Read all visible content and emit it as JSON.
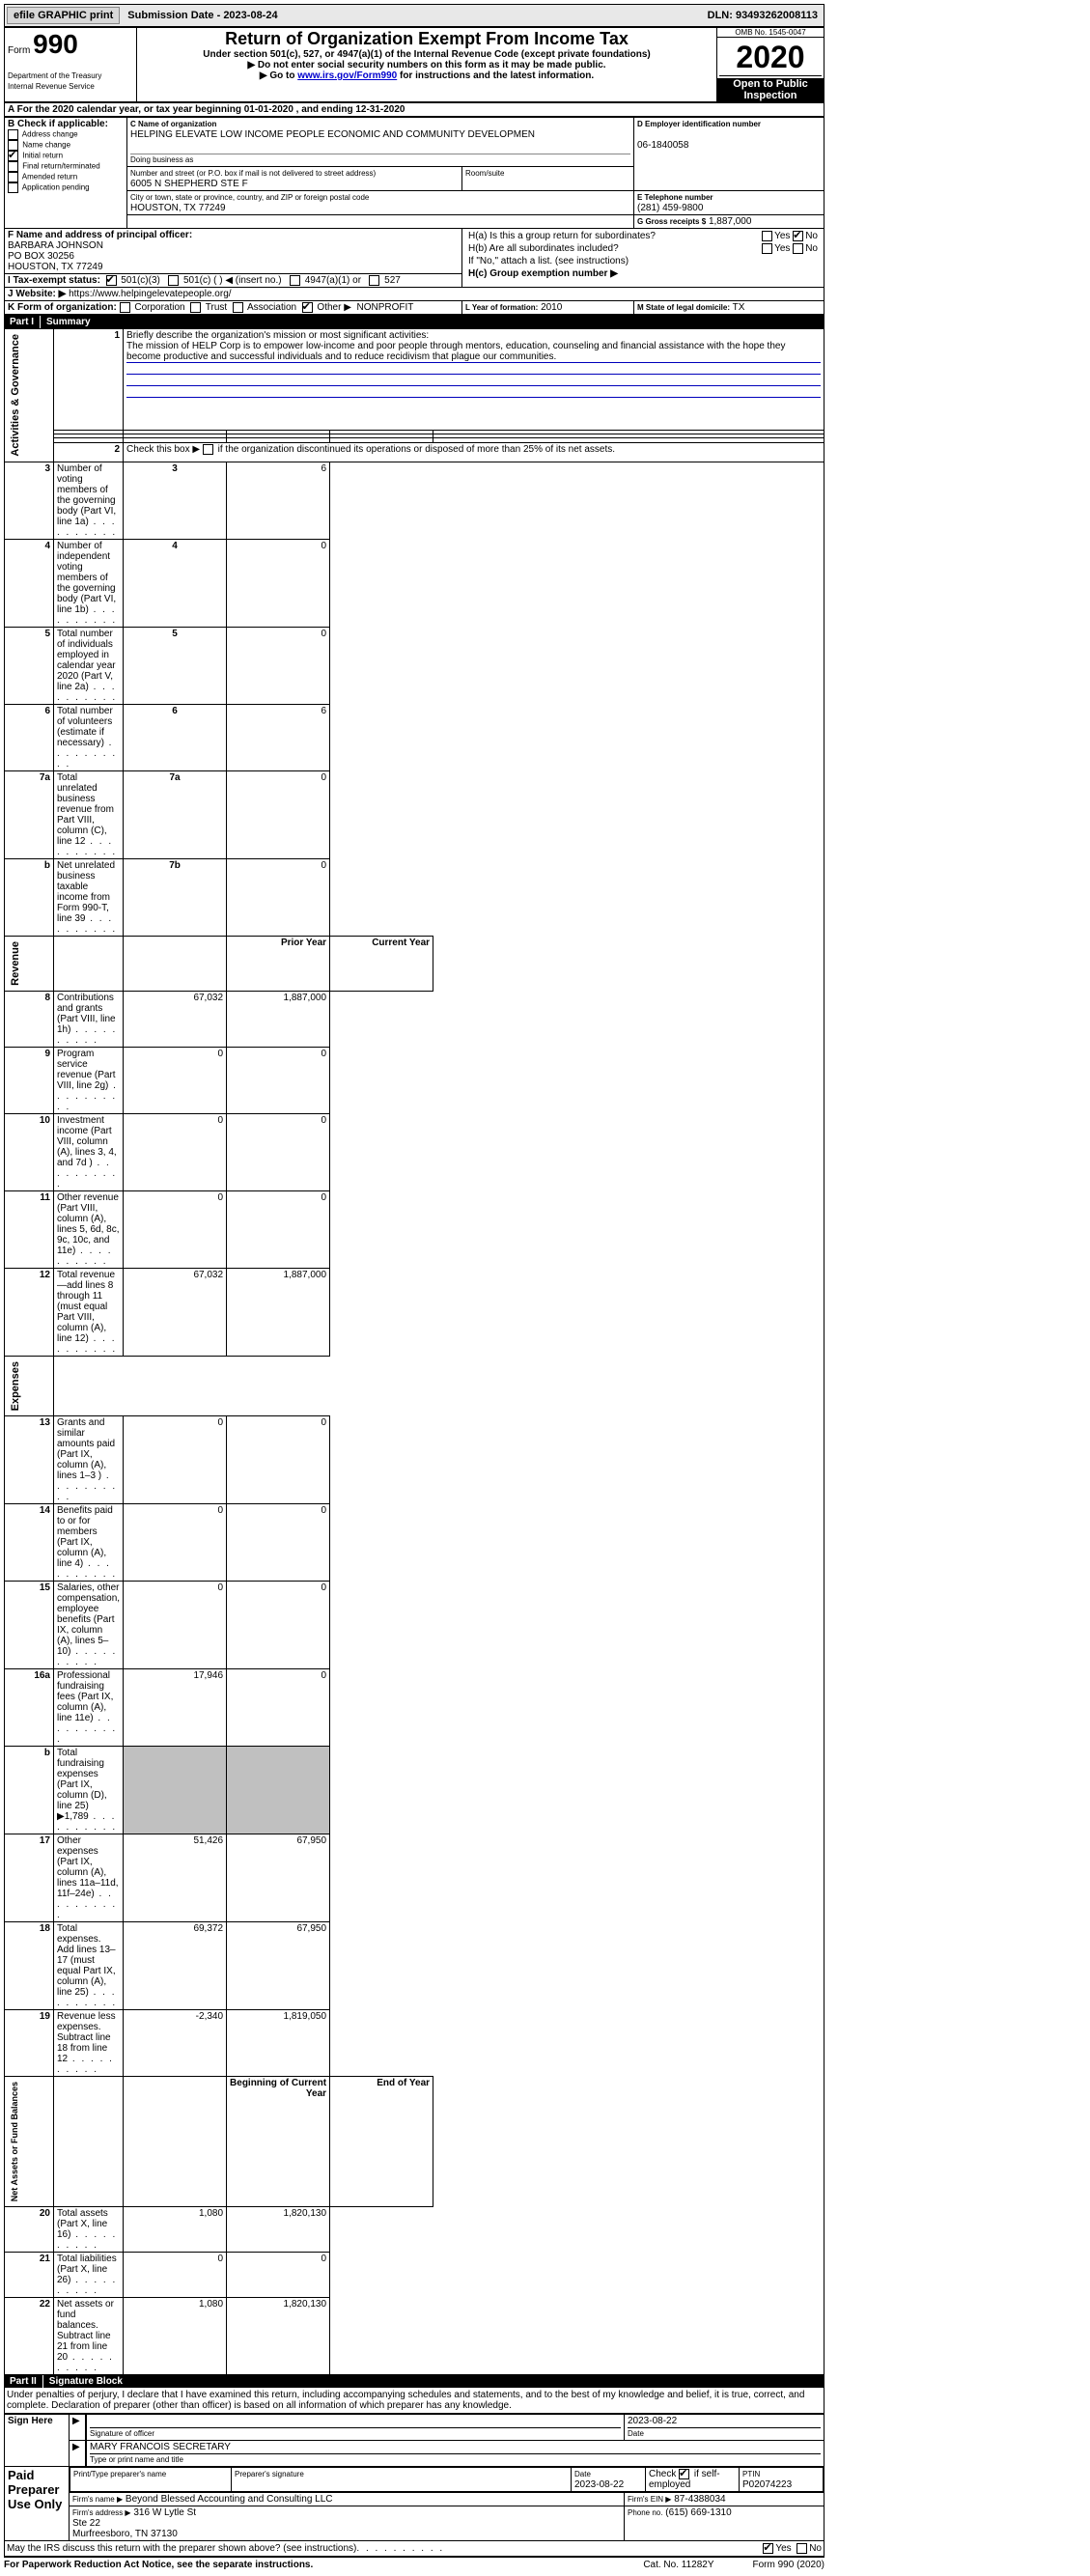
{
  "topbar": {
    "efile_label": "efile GRAPHIC print",
    "submission_label": "Submission Date - 2023-08-24",
    "dln": "DLN: 93493262008113"
  },
  "header": {
    "form_label": "Form",
    "form_number": "990",
    "dept": "Department of the Treasury\nInternal Revenue Service",
    "title": "Return of Organization Exempt From Income Tax",
    "subtitle": "Under section 501(c), 527, or 4947(a)(1) of the Internal Revenue Code (except private foundations)",
    "note1": "▶ Do not enter social security numbers on this form as it may be made public.",
    "note2_pre": "▶ Go to ",
    "note2_link": "www.irs.gov/Form990",
    "note2_post": " for instructions and the latest information.",
    "omb": "OMB No. 1545-0047",
    "year": "2020",
    "inspect": "Open to Public Inspection"
  },
  "lineA": "For the 2020 calendar year, or tax year beginning 01-01-2020   , and ending 12-31-2020",
  "boxB": {
    "label": "B Check if applicable:",
    "items": [
      "Address change",
      "Name change",
      "Initial return",
      "Final return/terminated",
      "Amended return",
      "Application pending"
    ],
    "checked_index": 2
  },
  "boxC": {
    "label": "C Name of organization",
    "name": "HELPING ELEVATE LOW INCOME PEOPLE ECONOMIC AND COMMUNITY DEVELOPMEN",
    "dba_label": "Doing business as",
    "street_label": "Number and street (or P.O. box if mail is not delivered to street address)",
    "room_label": "Room/suite",
    "street": "6005 N SHEPHERD STE F",
    "city_label": "City or town, state or province, country, and ZIP or foreign postal code",
    "city": "HOUSTON, TX  77249"
  },
  "boxD": {
    "label": "D Employer identification number",
    "value": "06-1840058"
  },
  "boxE": {
    "label": "E Telephone number",
    "value": "(281) 459-9800"
  },
  "boxG": {
    "label": "G Gross receipts $",
    "value": "1,887,000"
  },
  "boxF": {
    "label": "F  Name and address of principal officer:",
    "lines": [
      "BARBARA JOHNSON",
      "PO BOX 30256",
      "HOUSTON, TX  77249"
    ]
  },
  "boxH": {
    "a_label": "H(a)  Is this a group return for subordinates?",
    "a_yes": "Yes",
    "a_no": "No",
    "a_checked": "no",
    "b_label": "H(b)  Are all subordinates included?",
    "b_yes": "Yes",
    "b_no": "No",
    "b_note": "If \"No,\" attach a list. (see instructions)",
    "c_label": "H(c)  Group exemption number ▶"
  },
  "boxI": {
    "label": "I    Tax-exempt status:",
    "opts": [
      "501(c)(3)",
      "501(c) (  ) ◀ (insert no.)",
      "4947(a)(1) or",
      "527"
    ],
    "checked_index": 0
  },
  "boxJ": {
    "label": "J    Website: ▶",
    "value": "https://www.helpingelevatepeople.org/"
  },
  "boxK": {
    "label": "K Form of organization:",
    "opts": [
      "Corporation",
      "Trust",
      "Association",
      "Other ▶"
    ],
    "checked_index": 3,
    "other_value": "NONPROFIT"
  },
  "boxL": {
    "label": "L Year of formation:",
    "value": "2010"
  },
  "boxM": {
    "label": "M State of legal domicile:",
    "value": "TX"
  },
  "part1": {
    "label": "Part I",
    "title": "Summary",
    "sections": {
      "gov": {
        "label": "Activities & Governance",
        "line1_label": "Briefly describe the organization's mission or most significant activities:",
        "mission": "The mission of HELP Corp is to empower low-income and poor people through mentors, education, counseling and financial assistance with the hope they become productive and successful individuals and to reduce recidivism that plague our communities.",
        "line2": "Check this box ▶        if the organization discontinued its operations or disposed of more than 25% of its net assets.",
        "rows": [
          {
            "n": "3",
            "t": "Number of voting members of the governing body (Part VI, line 1a)",
            "box": "3",
            "v": "6"
          },
          {
            "n": "4",
            "t": "Number of independent voting members of the governing body (Part VI, line 1b)",
            "box": "4",
            "v": "0"
          },
          {
            "n": "5",
            "t": "Total number of individuals employed in calendar year 2020 (Part V, line 2a)",
            "box": "5",
            "v": "0"
          },
          {
            "n": "6",
            "t": "Total number of volunteers (estimate if necessary)",
            "box": "6",
            "v": "6"
          },
          {
            "n": "7a",
            "t": "Total unrelated business revenue from Part VIII, column (C), line 12",
            "box": "7a",
            "v": "0"
          },
          {
            "n": "b",
            "t": "Net unrelated business taxable income from Form 990-T, line 39",
            "box": "7b",
            "v": "0"
          }
        ]
      },
      "rev": {
        "label": "Revenue",
        "prior_header": "Prior Year",
        "current_header": "Current Year",
        "rows": [
          {
            "n": "8",
            "t": "Contributions and grants (Part VIII, line 1h)",
            "p": "67,032",
            "c": "1,887,000"
          },
          {
            "n": "9",
            "t": "Program service revenue (Part VIII, line 2g)",
            "p": "0",
            "c": "0"
          },
          {
            "n": "10",
            "t": "Investment income (Part VIII, column (A), lines 3, 4, and 7d )",
            "p": "0",
            "c": "0"
          },
          {
            "n": "11",
            "t": "Other revenue (Part VIII, column (A), lines 5, 6d, 8c, 9c, 10c, and 11e)",
            "p": "0",
            "c": "0"
          },
          {
            "n": "12",
            "t": "Total revenue—add lines 8 through 11 (must equal Part VIII, column (A), line 12)",
            "p": "67,032",
            "c": "1,887,000"
          }
        ]
      },
      "exp": {
        "label": "Expenses",
        "rows": [
          {
            "n": "13",
            "t": "Grants and similar amounts paid (Part IX, column (A), lines 1–3 )",
            "p": "0",
            "c": "0"
          },
          {
            "n": "14",
            "t": "Benefits paid to or for members (Part IX, column (A), line 4)",
            "p": "0",
            "c": "0"
          },
          {
            "n": "15",
            "t": "Salaries, other compensation, employee benefits (Part IX, column (A), lines 5–10)",
            "p": "0",
            "c": "0"
          },
          {
            "n": "16a",
            "t": "Professional fundraising fees (Part IX, column (A), line 11e)",
            "p": "17,946",
            "c": "0"
          },
          {
            "n": "b",
            "t": "Total fundraising expenses (Part IX, column (D), line 25) ▶1,789",
            "p": "",
            "c": "",
            "gray": true
          },
          {
            "n": "17",
            "t": "Other expenses (Part IX, column (A), lines 11a–11d, 11f–24e)",
            "p": "51,426",
            "c": "67,950"
          },
          {
            "n": "18",
            "t": "Total expenses. Add lines 13–17 (must equal Part IX, column (A), line 25)",
            "p": "69,372",
            "c": "67,950"
          },
          {
            "n": "19",
            "t": "Revenue less expenses. Subtract line 18 from line 12",
            "p": "-2,340",
            "c": "1,819,050"
          }
        ]
      },
      "net": {
        "label": "Net Assets or Fund Balances",
        "begin_header": "Beginning of Current Year",
        "end_header": "End of Year",
        "rows": [
          {
            "n": "20",
            "t": "Total assets (Part X, line 16)",
            "p": "1,080",
            "c": "1,820,130"
          },
          {
            "n": "21",
            "t": "Total liabilities (Part X, line 26)",
            "p": "0",
            "c": "0"
          },
          {
            "n": "22",
            "t": "Net assets or fund balances. Subtract line 21 from line 20",
            "p": "1,080",
            "c": "1,820,130"
          }
        ]
      }
    }
  },
  "part2": {
    "label": "Part II",
    "title": "Signature Block",
    "declaration": "Under penalties of perjury, I declare that I have examined this return, including accompanying schedules and statements, and to the best of my knowledge and belief, it is true, correct, and complete. Declaration of preparer (other than officer) is based on all information of which preparer has any knowledge.",
    "sign_here": "Sign Here",
    "sig_officer": "Signature of officer",
    "sig_date": "2023-08-22",
    "date_label": "Date",
    "officer_name": "MARY FRANCOIS  SECRETARY",
    "type_label": "Type or print name and title",
    "paid": {
      "label": "Paid Preparer Use Only",
      "print_label": "Print/Type preparer's name",
      "sig_label": "Preparer's signature",
      "date_label": "Date",
      "date": "2023-08-22",
      "check_label": "Check         if self-employed",
      "ptin_label": "PTIN",
      "ptin": "P02074223",
      "firm_name_label": "Firm's name     ▶",
      "firm_name": "Beyond Blessed Accounting and Consulting LLC",
      "firm_ein_label": "Firm's EIN ▶",
      "firm_ein": "87-4388034",
      "firm_addr_label": "Firm's address ▶",
      "firm_addr": "316 W Lytle St\nSte 22\nMurfreesboro, TN  37130",
      "phone_label": "Phone no.",
      "phone": "(615) 669-1310"
    },
    "discuss": "May the IRS discuss this return with the preparer shown above? (see instructions)",
    "discuss_yes": "Yes",
    "discuss_no": "No",
    "discuss_checked": "yes"
  },
  "footer": {
    "left": "For Paperwork Reduction Act Notice, see the separate instructions.",
    "mid": "Cat. No. 11282Y",
    "right": "Form 990 (2020)"
  }
}
